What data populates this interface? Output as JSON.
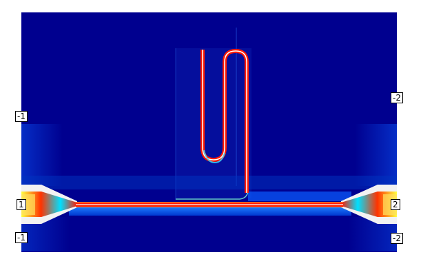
{
  "colors": {
    "background": "#ffffff",
    "field_low": "#00008f",
    "field_mid": "#0a5cff",
    "field_cyan": "#40e0ff",
    "field_high": "#ff1a00",
    "field_peak": "#ffff40",
    "cladding": "#f2f2f2"
  },
  "port_labels": {
    "left_upper": "-1",
    "left_mid": "1",
    "left_lower": "-1",
    "right_upper": "-2",
    "right_mid": "2",
    "right_lower": "-2"
  }
}
